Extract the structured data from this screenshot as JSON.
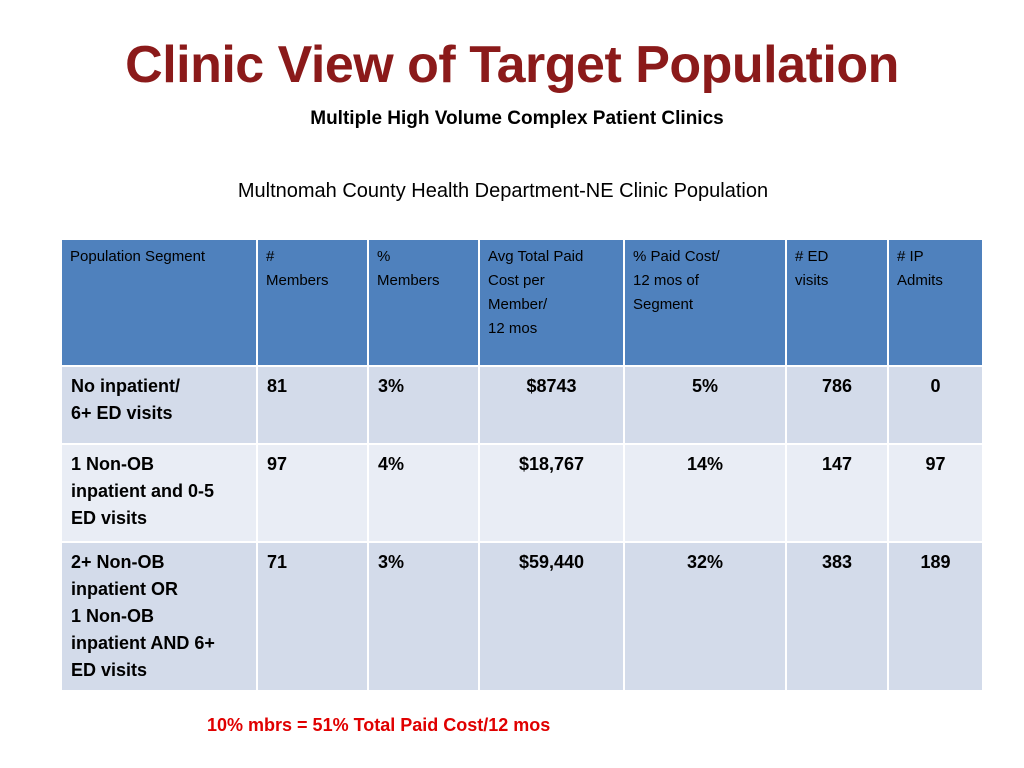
{
  "slide": {
    "title": "Clinic View of Target Population",
    "subtitle": "Multiple High Volume Complex Patient Clinics",
    "clinic_heading": "Multnomah County Health Department-NE Clinic Population",
    "footnote": "10% mbrs = 51% Total Paid Cost/12 mos"
  },
  "table": {
    "headers": [
      "Population Segment",
      "#\nMembers",
      "%\nMembers",
      "Avg Total Paid\nCost per\nMember/\n12 mos",
      "% Paid Cost/\n12 mos  of\nSegment",
      "# ED\nvisits",
      "# IP\nAdmits"
    ],
    "rows": [
      [
        "No inpatient/\n6+ ED visits",
        "81",
        "3%",
        "$8743",
        "5%",
        "786",
        "0"
      ],
      [
        "1 Non-OB\ninpatient and  0-5\nED visits",
        "97",
        "4%",
        "$18,767",
        "14%",
        "147",
        "97"
      ],
      [
        "2+ Non-OB\ninpatient OR\n1 Non-OB\ninpatient AND 6+\nED visits",
        "71",
        "3%",
        "$59,440",
        "32%",
        "383",
        "189"
      ]
    ]
  },
  "colors": {
    "title": "#8b1a1a",
    "header_fill": "#4f81bd",
    "row_fill": "#d3dbea",
    "row_fill_alt": "#e9edf5",
    "footnote": "#e00000"
  }
}
